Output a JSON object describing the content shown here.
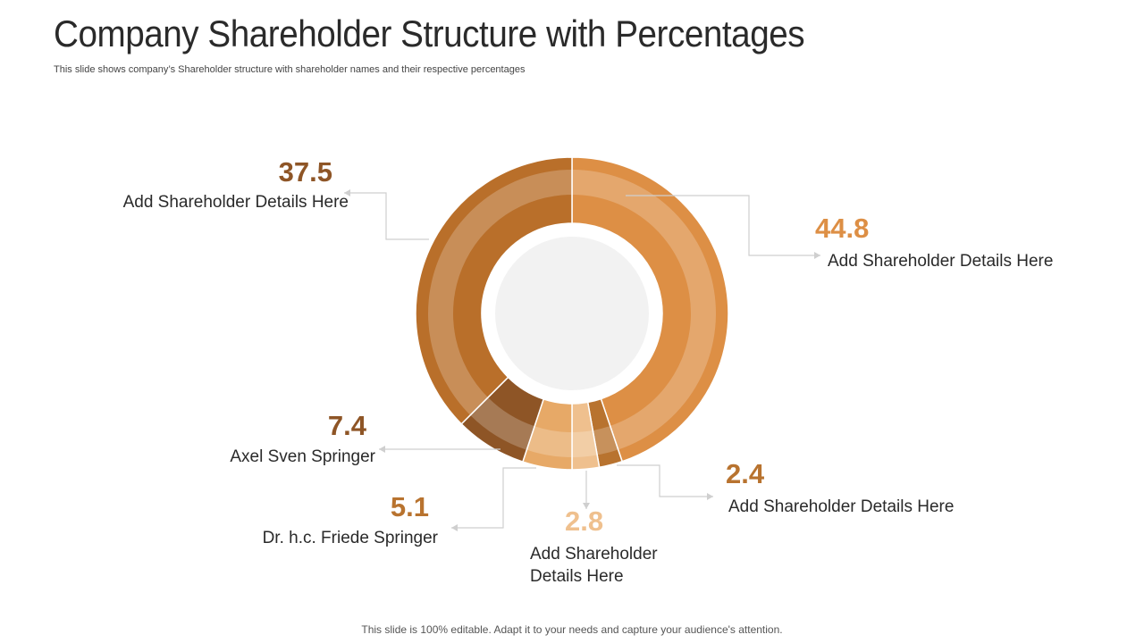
{
  "slide": {
    "title": "Company Shareholder Structure with Percentages",
    "subtitle": "This slide shows company’s Shareholder structure with shareholder names and their respective percentages",
    "footer": "This slide is 100% editable. Adapt it to your needs and capture your audience's attention."
  },
  "chart_data": {
    "type": "pie",
    "variant": "donut",
    "slices": [
      {
        "label": "Add Shareholder Details Here",
        "value": 44.8,
        "color": "#DD8F45"
      },
      {
        "label": "Add Shareholder Details Here",
        "value": 2.4,
        "color": "#B8732F"
      },
      {
        "label": "Add Shareholder Details Here",
        "value": 2.8,
        "color": "#EFC08E"
      },
      {
        "label": "Dr. h.c. Friede Springer",
        "value": 5.1,
        "color": "#E7A967"
      },
      {
        "label": "Axel Sven Springer",
        "value": 7.4,
        "color": "#8E5526"
      },
      {
        "label": "Add Shareholder Details Here",
        "value": 37.5,
        "color": "#B96F2A"
      }
    ],
    "center_color": "#F2F2F2"
  }
}
